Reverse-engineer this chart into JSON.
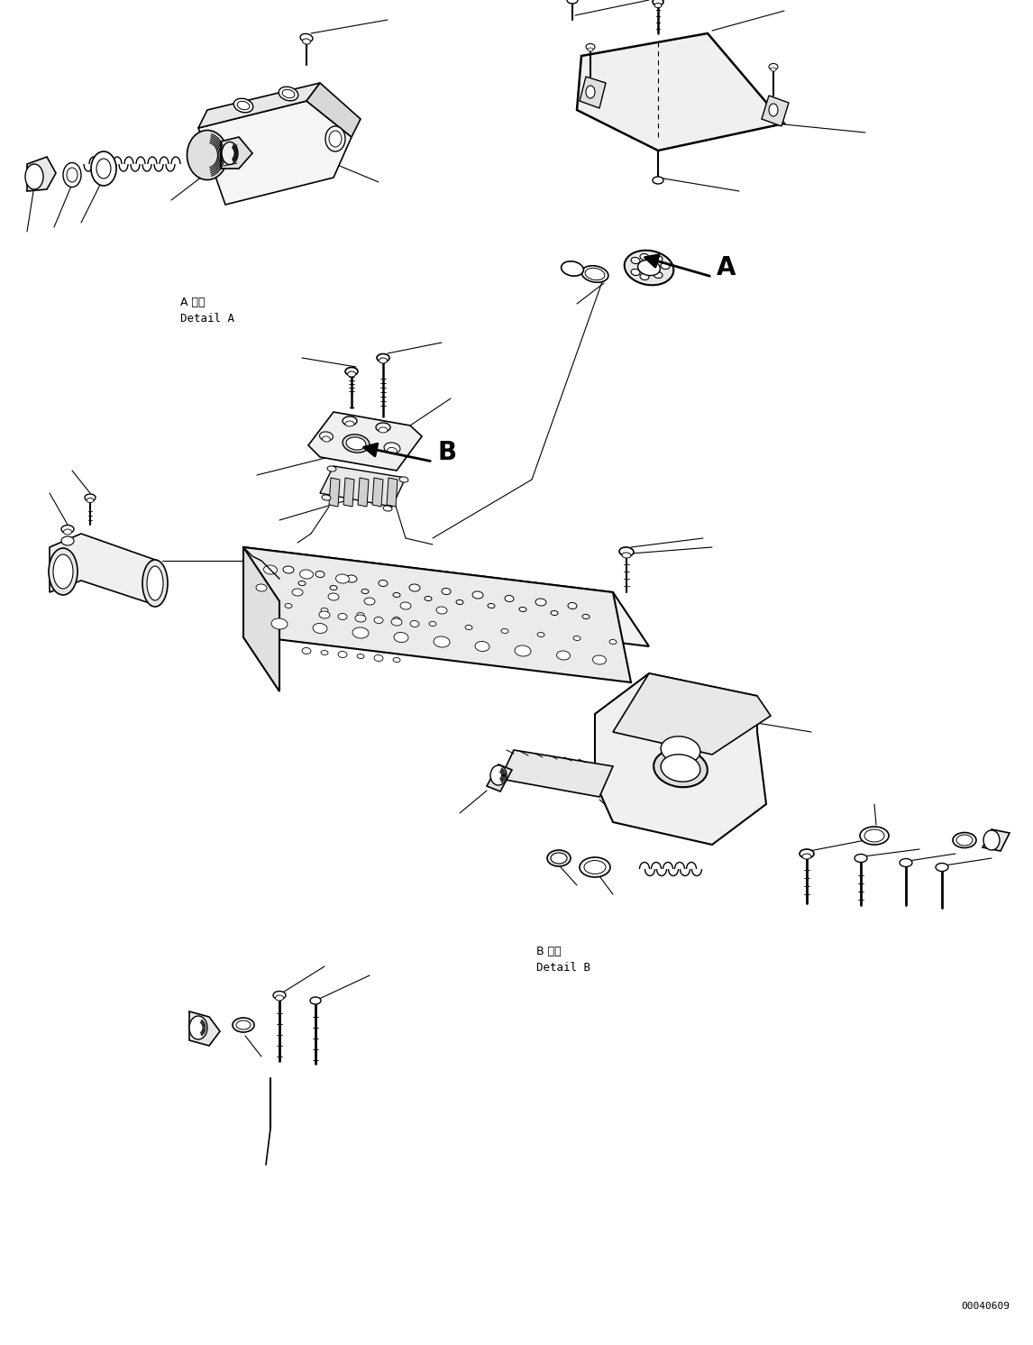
{
  "background_color": "#ffffff",
  "line_color": "#000000",
  "figure_width": 11.46,
  "figure_height": 14.92,
  "watermark": "00040609",
  "label_a": "A",
  "label_b": "B",
  "detail_a_line1": "A 詳細",
  "detail_a_line2": "Detail A",
  "detail_b_line1": "B 詳細",
  "detail_b_line2": "Detail B"
}
